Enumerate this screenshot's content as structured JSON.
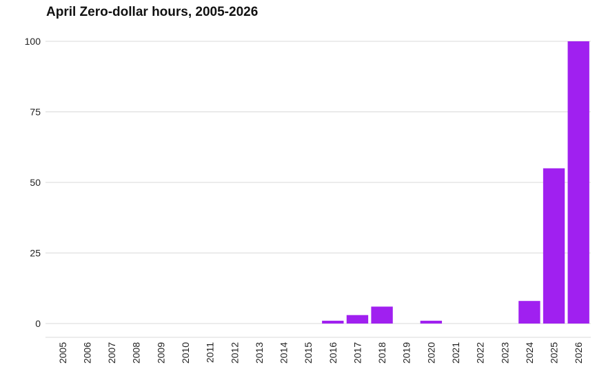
{
  "chart_data": {
    "type": "bar",
    "title": "April Zero-dollar hours, 2005-2026",
    "xlabel": "",
    "ylabel": "",
    "categories": [
      "2005",
      "2006",
      "2007",
      "2008",
      "2009",
      "2010",
      "2011",
      "2012",
      "2013",
      "2014",
      "2015",
      "2016",
      "2017",
      "2018",
      "2019",
      "2020",
      "2021",
      "2022",
      "2023",
      "2024",
      "2025",
      "2026"
    ],
    "values": [
      0,
      0,
      0,
      0,
      0,
      0,
      0,
      0,
      0,
      0,
      0,
      1,
      3,
      6,
      0,
      1,
      0,
      0,
      0,
      8,
      55,
      100
    ],
    "ylim": [
      0,
      100
    ],
    "yticks": [
      0,
      25,
      50,
      75,
      100
    ],
    "bar_color": "#a020f0",
    "grid": "horizontal",
    "legend": "none"
  }
}
